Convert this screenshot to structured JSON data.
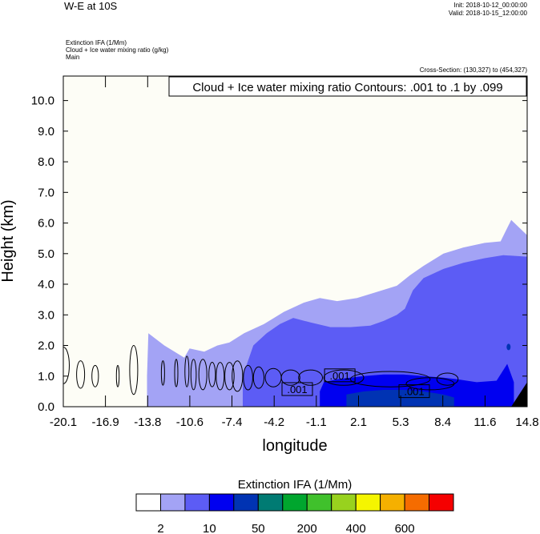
{
  "header": {
    "title": "W-E at 10S",
    "init": "Init: 2018-10-12_00:00:00",
    "valid": "Valid: 2018-10-15_12:00:00",
    "fields": [
      "Extinction IFA   (1/Mm)",
      "Cloud + Ice water mixing ratio   (g/kg)",
      "Main"
    ],
    "cross_section": "Cross-Section: (130,327) to (454,327)"
  },
  "chart_data": {
    "type": "contour",
    "title": "Cloud + Ice water mixing ratio Contours: .001 to .1 by .099",
    "xlabel": "longitude",
    "ylabel": "Height (km)",
    "xlim": [
      -20.1,
      14.8
    ],
    "ylim": [
      0.0,
      10.8
    ],
    "x_ticks": [
      "-20.1",
      "-16.9",
      "-13.8",
      "-10.6",
      "-7.4",
      "-4.2",
      "-1.1",
      "2.1",
      "5.3",
      "8.4",
      "11.6",
      "14.8"
    ],
    "y_ticks": [
      "0.0",
      "1.0",
      "2.0",
      "3.0",
      "4.0",
      "5.0",
      "6.0",
      "7.0",
      "8.0",
      "9.0",
      "10.0"
    ],
    "colorbar": {
      "title": "Extinction IFA  (1/Mm)",
      "colors": [
        "#ffffff",
        "#a3a3f5",
        "#5c5cf5",
        "#0000f0",
        "#0033b3",
        "#007b73",
        "#00a62e",
        "#40c12c",
        "#98d21e",
        "#f5f500",
        "#f5b000",
        "#f56c00",
        "#f50000"
      ],
      "labels": [
        "2",
        "10",
        "50",
        "200",
        "400",
        "600"
      ]
    },
    "fill_layers": [
      {
        "level": "2",
        "color": "#a3a3f5",
        "top": [
          [
            -13.8,
            1.0
          ],
          [
            -13.7,
            2.4
          ],
          [
            -12.5,
            2.0
          ],
          [
            -11.0,
            1.6
          ],
          [
            -10.6,
            1.9
          ],
          [
            -9.5,
            1.8
          ],
          [
            -8.5,
            2.0
          ],
          [
            -7.6,
            2.1
          ],
          [
            -6.5,
            2.4
          ],
          [
            -5.0,
            2.7
          ],
          [
            -3.5,
            3.1
          ],
          [
            -2.0,
            3.4
          ],
          [
            -0.8,
            3.55
          ],
          [
            0.5,
            3.45
          ],
          [
            2.0,
            3.55
          ],
          [
            3.5,
            3.75
          ],
          [
            5.0,
            3.95
          ],
          [
            6.0,
            4.3
          ],
          [
            7.0,
            4.6
          ],
          [
            8.5,
            5.0
          ],
          [
            10.0,
            5.2
          ],
          [
            11.6,
            5.35
          ],
          [
            12.8,
            5.4
          ],
          [
            13.6,
            6.1
          ],
          [
            14.8,
            5.6
          ]
        ]
      },
      {
        "level": "10",
        "color": "#5c5cf5",
        "top": [
          [
            -6.6,
            1.0
          ],
          [
            -5.8,
            2.0
          ],
          [
            -4.8,
            2.4
          ],
          [
            -3.8,
            2.7
          ],
          [
            -2.8,
            2.9
          ],
          [
            -1.5,
            2.75
          ],
          [
            0.0,
            2.6
          ],
          [
            1.5,
            2.6
          ],
          [
            3.0,
            2.65
          ],
          [
            4.0,
            2.8
          ],
          [
            5.0,
            3.0
          ],
          [
            5.6,
            3.2
          ],
          [
            6.2,
            3.8
          ],
          [
            7.0,
            4.2
          ],
          [
            8.5,
            4.5
          ],
          [
            10.0,
            4.7
          ],
          [
            11.6,
            4.85
          ],
          [
            13.0,
            4.95
          ],
          [
            14.8,
            4.9
          ]
        ]
      },
      {
        "level": "50",
        "color": "#0000f0",
        "top": [
          [
            -0.8,
            0.5
          ],
          [
            -0.5,
            0.8
          ],
          [
            0.5,
            0.9
          ],
          [
            1.5,
            0.95
          ],
          [
            2.5,
            1.0
          ],
          [
            4.0,
            1.05
          ],
          [
            5.5,
            1.05
          ],
          [
            7.0,
            1.0
          ],
          [
            8.5,
            0.95
          ],
          [
            9.5,
            0.9
          ],
          [
            11.0,
            0.8
          ],
          [
            12.5,
            0.85
          ],
          [
            13.3,
            1.4
          ],
          [
            13.8,
            0.8
          ]
        ]
      },
      {
        "level": "200",
        "color": "#0033b3",
        "top": [
          [
            1.2,
            0.4
          ],
          [
            2.5,
            0.5
          ],
          [
            4.0,
            0.55
          ],
          [
            5.5,
            0.55
          ],
          [
            7.0,
            0.5
          ],
          [
            8.5,
            0.4
          ],
          [
            9.3,
            0.3
          ]
        ]
      }
    ],
    "contour_labels": [
      {
        "text": ".001",
        "x": -2.5,
        "y": 0.55
      },
      {
        "text": ".001",
        "x": 0.7,
        "y": 1.0
      },
      {
        "text": ".001",
        "x": 6.3,
        "y": 0.48
      }
    ]
  }
}
